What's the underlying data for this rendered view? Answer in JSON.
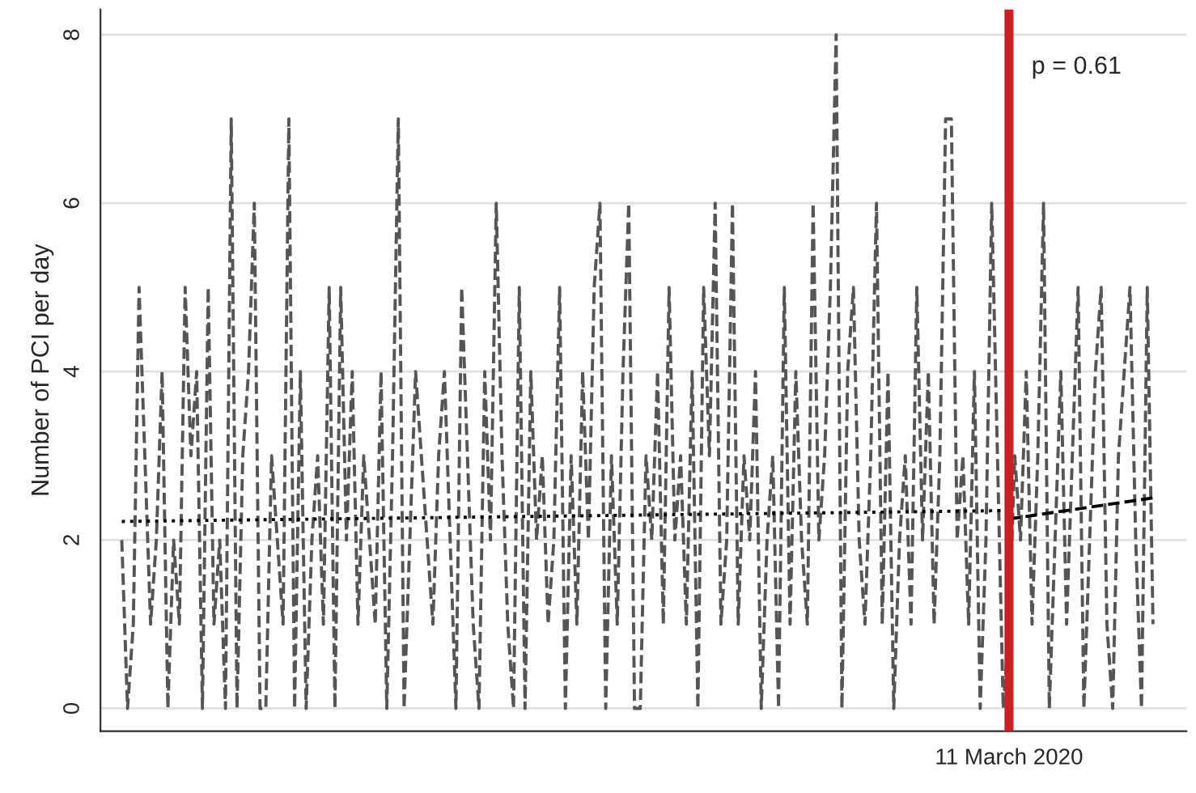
{
  "chart_data": {
    "type": "line",
    "ylabel": "Number of PCI per day",
    "annotations": [
      "p = 0.61"
    ],
    "categories": [
      null,
      null,
      null,
      null,
      null,
      null,
      null,
      null,
      null,
      null,
      null,
      null,
      null,
      null,
      null,
      null,
      null,
      null,
      null,
      null,
      null,
      null,
      null,
      null,
      null,
      null,
      null,
      null,
      null,
      null,
      null,
      null,
      null,
      null,
      null,
      null,
      null,
      null,
      null,
      null,
      null,
      null,
      null,
      null,
      null,
      null,
      null,
      null,
      null,
      null,
      null,
      null,
      null,
      null,
      null,
      null,
      null,
      null,
      null,
      null,
      null,
      null,
      null,
      null,
      null,
      null,
      null,
      null,
      null,
      null,
      null,
      null,
      null,
      null,
      null,
      null,
      null,
      null,
      null,
      null,
      null,
      null,
      null,
      null,
      null,
      null,
      null,
      null,
      null,
      null,
      null,
      null,
      null,
      null,
      null,
      null,
      null,
      null,
      null,
      null,
      null,
      null,
      null,
      null,
      null,
      null,
      null,
      null,
      null,
      null,
      null,
      null,
      null,
      null,
      null,
      null,
      null,
      null,
      null,
      null,
      null,
      null,
      null,
      null,
      null,
      null,
      null,
      null,
      null,
      null,
      null,
      null,
      null,
      null,
      null,
      null,
      null,
      null,
      null,
      null,
      null,
      null,
      null,
      null,
      null,
      null,
      null,
      null,
      null,
      null,
      null,
      null,
      null,
      null,
      "11 March 2020",
      null,
      null,
      null,
      null,
      null,
      null,
      null,
      null,
      null,
      null,
      null,
      null,
      null,
      null,
      null,
      null,
      null,
      null,
      null,
      null,
      null,
      null,
      null,
      null,
      null
    ],
    "ylim": [
      -0.27,
      8.3
    ],
    "yticks": [
      0,
      2,
      4,
      6,
      8
    ],
    "grid": "y",
    "ref_lines": [
      {
        "axis": "x",
        "value": "11 March 2020",
        "color": "#cc1f1f"
      }
    ],
    "series": [
      {
        "color": "#555555",
        "line_style": "dashed",
        "values": [
          2,
          0,
          1,
          5,
          3,
          1,
          2,
          4,
          0,
          2,
          1,
          5,
          3,
          4,
          0,
          5,
          1,
          2,
          0,
          7,
          0,
          3,
          4,
          6,
          0,
          0,
          3,
          2,
          1,
          7,
          0,
          4,
          0,
          2,
          3,
          1,
          5,
          0,
          5,
          2,
          4,
          1,
          3,
          2,
          1,
          4,
          0,
          3,
          7,
          0,
          2,
          4,
          3,
          2,
          1,
          3,
          4,
          2,
          0,
          5,
          3,
          1,
          0,
          4,
          2,
          6,
          3,
          1,
          0,
          5,
          0,
          4,
          2,
          3,
          1,
          2,
          5,
          0,
          3,
          1,
          4,
          2,
          5,
          6,
          0,
          3,
          1,
          4,
          6,
          0,
          0,
          3,
          2,
          4,
          1,
          5,
          2,
          3,
          1,
          4,
          0,
          5,
          3,
          6,
          1,
          2,
          6,
          1,
          3,
          2,
          4,
          0,
          2,
          3,
          0,
          5,
          1,
          4,
          2,
          1,
          6,
          2,
          3,
          5,
          8,
          0,
          4,
          5,
          2,
          1,
          3,
          6,
          1,
          4,
          0,
          2,
          3,
          1,
          5,
          2,
          4,
          1,
          3,
          7,
          7,
          2,
          3,
          1,
          4,
          0,
          2,
          6,
          3,
          0,
          1,
          3,
          2,
          4,
          1,
          3,
          6,
          0,
          2,
          4,
          1,
          3,
          5,
          0,
          2,
          4,
          5,
          1,
          0,
          3,
          4,
          5,
          2,
          0,
          5,
          1
        ]
      },
      {
        "type": "line",
        "color": "#000000",
        "line_style": "dotted",
        "values": [
          2.22,
          null,
          null,
          null,
          null,
          null,
          null,
          null,
          null,
          null,
          null,
          null,
          null,
          null,
          null,
          null,
          null,
          null,
          null,
          null,
          null,
          null,
          null,
          null,
          null,
          null,
          null,
          null,
          null,
          null,
          null,
          null,
          null,
          null,
          null,
          null,
          null,
          null,
          null,
          null,
          null,
          null,
          null,
          null,
          null,
          null,
          null,
          null,
          null,
          null,
          null,
          null,
          null,
          null,
          null,
          null,
          null,
          null,
          null,
          null,
          null,
          null,
          null,
          null,
          null,
          null,
          null,
          null,
          null,
          null,
          null,
          null,
          null,
          null,
          null,
          null,
          null,
          null,
          null,
          null,
          null,
          null,
          null,
          null,
          null,
          null,
          null,
          null,
          null,
          null,
          null,
          null,
          null,
          null,
          null,
          null,
          null,
          null,
          null,
          null,
          null,
          null,
          null,
          null,
          null,
          null,
          null,
          null,
          null,
          null,
          null,
          null,
          null,
          null,
          null,
          null,
          null,
          null,
          null,
          null,
          null,
          null,
          null,
          null,
          null,
          null,
          null,
          null,
          null,
          null,
          null,
          null,
          null,
          null,
          null,
          null,
          null,
          null,
          null,
          null,
          null,
          null,
          null,
          null,
          null,
          null,
          null,
          null,
          null,
          null,
          null,
          null,
          null,
          null,
          2.35,
          null,
          null,
          null,
          null,
          null,
          null,
          null,
          null,
          null,
          null,
          null,
          null,
          null,
          null,
          null,
          null,
          null,
          null,
          null,
          null,
          null,
          null,
          null,
          null,
          null
        ]
      },
      {
        "type": "line",
        "color": "#000000",
        "line_style": "dashed",
        "values": [
          null,
          null,
          null,
          null,
          null,
          null,
          null,
          null,
          null,
          null,
          null,
          null,
          null,
          null,
          null,
          null,
          null,
          null,
          null,
          null,
          null,
          null,
          null,
          null,
          null,
          null,
          null,
          null,
          null,
          null,
          null,
          null,
          null,
          null,
          null,
          null,
          null,
          null,
          null,
          null,
          null,
          null,
          null,
          null,
          null,
          null,
          null,
          null,
          null,
          null,
          null,
          null,
          null,
          null,
          null,
          null,
          null,
          null,
          null,
          null,
          null,
          null,
          null,
          null,
          null,
          null,
          null,
          null,
          null,
          null,
          null,
          null,
          null,
          null,
          null,
          null,
          null,
          null,
          null,
          null,
          null,
          null,
          null,
          null,
          null,
          null,
          null,
          null,
          null,
          null,
          null,
          null,
          null,
          null,
          null,
          null,
          null,
          null,
          null,
          null,
          null,
          null,
          null,
          null,
          null,
          null,
          null,
          null,
          null,
          null,
          null,
          null,
          null,
          null,
          null,
          null,
          null,
          null,
          null,
          null,
          null,
          null,
          null,
          null,
          null,
          null,
          null,
          null,
          null,
          null,
          null,
          null,
          null,
          null,
          null,
          null,
          null,
          null,
          null,
          null,
          null,
          null,
          null,
          null,
          null,
          null,
          null,
          null,
          null,
          null,
          null,
          null,
          null,
          null,
          2.25,
          null,
          null,
          null,
          null,
          null,
          null,
          null,
          null,
          null,
          null,
          null,
          null,
          null,
          null,
          null,
          null,
          null,
          null,
          null,
          null,
          null,
          null,
          null,
          null,
          2.5
        ]
      }
    ]
  }
}
